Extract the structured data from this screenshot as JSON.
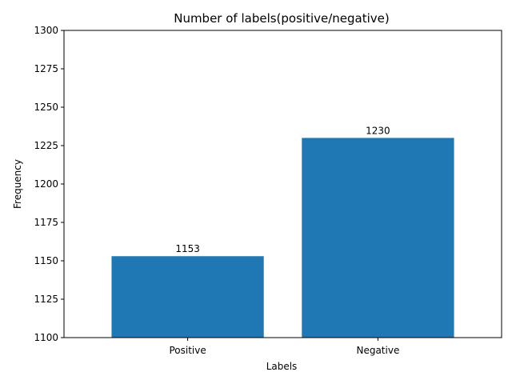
{
  "chart_data": {
    "type": "bar",
    "title": "Number of labels(positive/negative)",
    "xlabel": "Labels",
    "ylabel": "Frequency",
    "categories": [
      "Positive",
      "Negative"
    ],
    "values": [
      1153,
      1230
    ],
    "data_labels": [
      "1153",
      "1230"
    ],
    "ylim": [
      1100,
      1300
    ],
    "yticks": [
      1100,
      1125,
      1150,
      1175,
      1200,
      1225,
      1250,
      1275,
      1300
    ],
    "bar_color": "#1f77b4",
    "grid": false,
    "legend": "none"
  }
}
